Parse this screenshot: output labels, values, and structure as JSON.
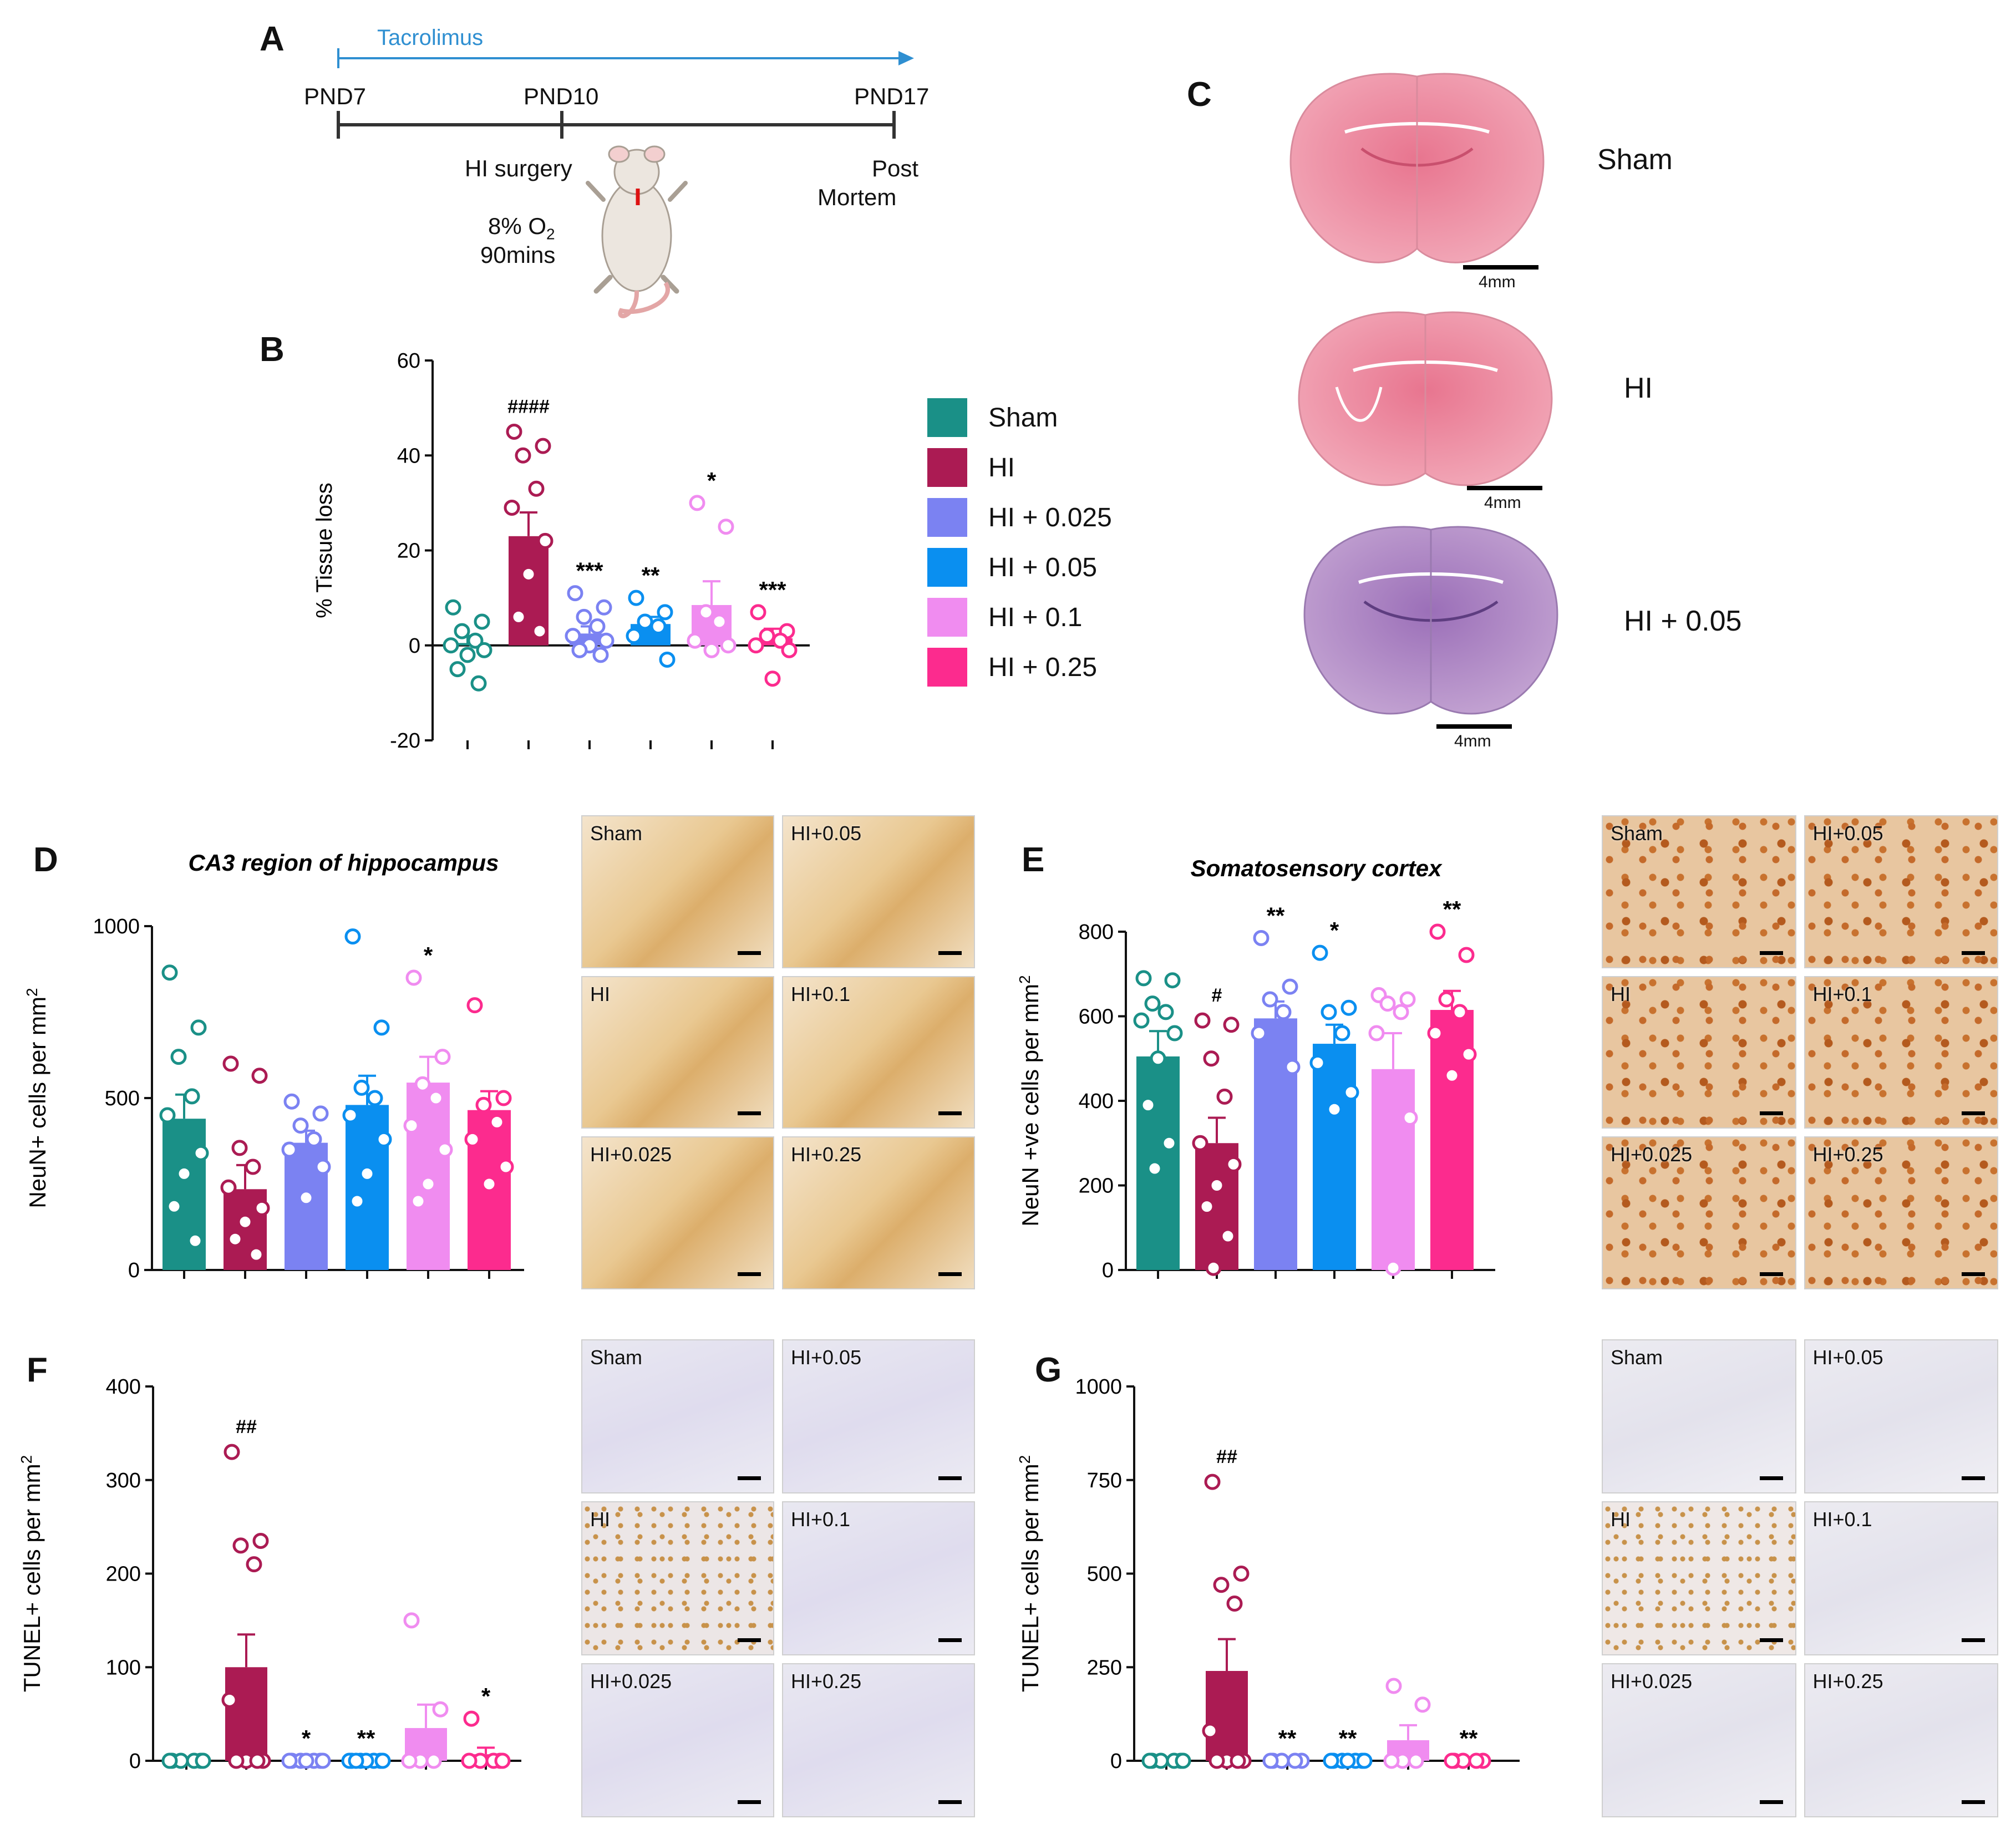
{
  "figure": {
    "panel_labels": [
      "A",
      "B",
      "C",
      "D",
      "E",
      "F",
      "G"
    ],
    "colors": {
      "Sham": "#1a9087",
      "HI": "#ab1b53",
      "HI + 0.025": "#7b82f2",
      "HI + 0.05": "#0a8ff0",
      "HI + 0.1": "#f08cf0",
      "HI + 0.25": "#fc2b8e"
    }
  },
  "timeline": {
    "drug": "Tacrolimus",
    "points": [
      "PND7",
      "PND10",
      "PND17"
    ],
    "hi_surgery": "HI surgery",
    "oxygen_line1": "8% O",
    "oxygen_sub": "2",
    "oxygen_line2": "90mins",
    "post_line1": "Post",
    "post_line2": "Mortem"
  },
  "legend": {
    "items": [
      "Sham",
      "HI",
      "HI + 0.025",
      "HI + 0.05",
      "HI + 0.1",
      "HI + 0.25"
    ]
  },
  "brains": {
    "rows": [
      {
        "label": "Sham",
        "scale": "4mm"
      },
      {
        "label": "HI",
        "scale": "4mm"
      },
      {
        "label": "HI + 0.05",
        "scale": "4mm"
      }
    ]
  },
  "micrographs": {
    "D": [
      "Sham",
      "HI+0.05",
      "HI",
      "HI+0.1",
      "HI+0.025",
      "HI+0.25"
    ],
    "E": [
      "Sham",
      "HI+0.05",
      "HI",
      "HI+0.1",
      "HI+0.025",
      "HI+0.25"
    ],
    "F": [
      "Sham",
      "HI+0.05",
      "HI",
      "HI+0.1",
      "HI+0.025",
      "HI+0.25"
    ],
    "G": [
      "Sham",
      "HI+0.05",
      "HI",
      "HI+0.1",
      "HI+0.025",
      "HI+0.25"
    ]
  },
  "chart_data": [
    {
      "panel": "B",
      "type": "bar",
      "title": "",
      "xlabel": "",
      "ylabel": "% Tissue loss",
      "ylim": [
        -20,
        60
      ],
      "yticks": [
        -20,
        0,
        20,
        40,
        60
      ],
      "categories": [
        "Sham",
        "HI",
        "HI + 0.025",
        "HI + 0.05",
        "HI + 0.1",
        "HI + 0.25"
      ],
      "values": [
        0.5,
        23,
        2.5,
        4.5,
        8.5,
        1.5
      ],
      "errors": [
        1.5,
        5,
        1.5,
        1.5,
        5,
        2
      ],
      "annotations": [
        "",
        "####",
        "***",
        "**",
        "*",
        "***"
      ],
      "points": [
        [
          8,
          5,
          3,
          1,
          0,
          -1,
          -2,
          -5,
          -8
        ],
        [
          45,
          42,
          40,
          33,
          29,
          22,
          15,
          6,
          3
        ],
        [
          11,
          8,
          6,
          4,
          2,
          1,
          0,
          -1,
          -2
        ],
        [
          10,
          7,
          5,
          4,
          2,
          -3
        ],
        [
          30,
          25,
          7,
          5,
          1,
          0,
          -1
        ],
        [
          7,
          3,
          2,
          1,
          0,
          -1,
          -7
        ]
      ]
    },
    {
      "panel": "D",
      "type": "bar",
      "title": "CA3 region of hippocampus",
      "xlabel": "",
      "ylabel": "NeuN+ cells per mm",
      "ylabel_sup": "2",
      "ylim": [
        0,
        1000
      ],
      "yticks": [
        0,
        500,
        1000
      ],
      "categories": [
        "Sham",
        "HI",
        "HI + 0.025",
        "HI + 0.05",
        "HI + 0.1",
        "HI + 0.25"
      ],
      "values": [
        440,
        235,
        370,
        480,
        545,
        465
      ],
      "errors": [
        70,
        70,
        35,
        85,
        75,
        55
      ],
      "annotations": [
        "",
        "",
        "",
        "",
        "*",
        ""
      ],
      "points": [
        [
          865,
          705,
          620,
          505,
          450,
          340,
          280,
          185,
          85
        ],
        [
          600,
          565,
          355,
          300,
          240,
          180,
          140,
          90,
          45
        ],
        [
          490,
          455,
          420,
          380,
          350,
          300,
          210
        ],
        [
          970,
          705,
          530,
          500,
          450,
          380,
          280,
          200
        ],
        [
          850,
          620,
          540,
          500,
          420,
          350,
          250,
          200
        ],
        [
          770,
          500,
          480,
          430,
          380,
          300,
          250
        ]
      ]
    },
    {
      "panel": "E",
      "type": "bar",
      "title": "Somatosensory cortex",
      "xlabel": "",
      "ylabel": "NeuN +ve cells per mm",
      "ylabel_sup": "2",
      "ylim": [
        0,
        800
      ],
      "yticks": [
        0,
        200,
        400,
        600,
        800
      ],
      "categories": [
        "Sham",
        "HI",
        "HI + 0.025",
        "HI + 0.05",
        "HI + 0.1",
        "HI + 0.25"
      ],
      "values": [
        505,
        300,
        595,
        535,
        475,
        615
      ],
      "errors": [
        60,
        60,
        40,
        45,
        85,
        45
      ],
      "annotations": [
        "",
        "#",
        "**",
        "*",
        "",
        "**"
      ],
      "points": [
        [
          690,
          685,
          630,
          610,
          590,
          560,
          500,
          390,
          300,
          240
        ],
        [
          590,
          580,
          500,
          410,
          300,
          250,
          200,
          150,
          80,
          5
        ],
        [
          785,
          670,
          640,
          610,
          560,
          480
        ],
        [
          750,
          620,
          610,
          560,
          490,
          420,
          380
        ],
        [
          650,
          640,
          630,
          610,
          560,
          360,
          5
        ],
        [
          800,
          745,
          640,
          610,
          560,
          510,
          460
        ]
      ]
    },
    {
      "panel": "F",
      "type": "bar",
      "title": "",
      "xlabel": "",
      "ylabel": "TUNEL+ cells per mm",
      "ylabel_sup": "2",
      "ylim": [
        0,
        400
      ],
      "yticks": [
        0,
        100,
        200,
        300,
        400
      ],
      "categories": [
        "Sham",
        "HI",
        "HI + 0.025",
        "HI + 0.05",
        "HI + 0.1",
        "HI + 0.25"
      ],
      "values": [
        0,
        100,
        0,
        0,
        35,
        7
      ],
      "errors": [
        0,
        35,
        0,
        0,
        25,
        7
      ],
      "annotations": [
        "",
        "##",
        "*",
        "**",
        "",
        "*"
      ],
      "points": [
        [
          0,
          0,
          0,
          0,
          0,
          0
        ],
        [
          330,
          235,
          230,
          210,
          65,
          0,
          0,
          0,
          0
        ],
        [
          0,
          0,
          0,
          0,
          0,
          0,
          0
        ],
        [
          0,
          0,
          0,
          0,
          0,
          0,
          0,
          0
        ],
        [
          150,
          55,
          0,
          0,
          0
        ],
        [
          45,
          0,
          0,
          0,
          0,
          0
        ]
      ]
    },
    {
      "panel": "G",
      "type": "bar",
      "title": "",
      "xlabel": "",
      "ylabel": "TUNEL+ cells per mm",
      "ylabel_sup": "2",
      "ylim": [
        0,
        1000
      ],
      "yticks": [
        0,
        250,
        500,
        750,
        1000
      ],
      "categories": [
        "Sham",
        "HI",
        "HI + 0.025",
        "HI + 0.05",
        "HI + 0.1",
        "HI + 0.25"
      ],
      "values": [
        0,
        240,
        0,
        0,
        55,
        0
      ],
      "errors": [
        0,
        85,
        0,
        0,
        40,
        0
      ],
      "annotations": [
        "",
        "##",
        "**",
        "**",
        "",
        "**"
      ],
      "points": [
        [
          0,
          0,
          0,
          0,
          0,
          0
        ],
        [
          745,
          500,
          470,
          420,
          80,
          0,
          0,
          0,
          0
        ],
        [
          0,
          0,
          0,
          0,
          0
        ],
        [
          0,
          0,
          0,
          0,
          0,
          0,
          0
        ],
        [
          200,
          150,
          0,
          0,
          0
        ],
        [
          0,
          0,
          0,
          0,
          0
        ]
      ]
    }
  ]
}
